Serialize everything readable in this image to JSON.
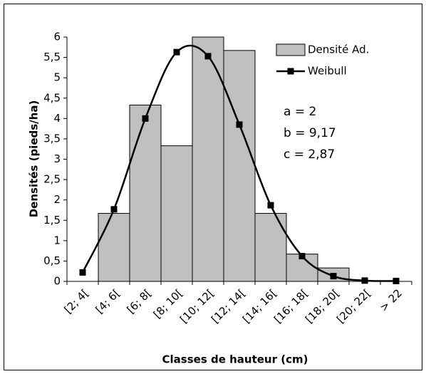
{
  "chart_data": {
    "type": "bar",
    "x_label": "Classes de hauteur (cm)",
    "y_label": "Densités (pieds/ha)",
    "categories": [
      "[2; 4[",
      "[4; 6[",
      "[6; 8[",
      "[8; 10[",
      "[10; 12[",
      "[12; 14[",
      "[14; 16[",
      "[16; 18[",
      "[18; 20[",
      "[20; 22[",
      "> 22"
    ],
    "series": [
      {
        "name": "Densité Ad.",
        "type": "bar",
        "color": "#c0c0c0",
        "values": [
          0,
          1.67,
          4.33,
          3.33,
          6,
          5.67,
          1.67,
          0.67,
          0.33,
          0,
          0
        ]
      },
      {
        "name": "Weibull",
        "type": "line",
        "color": "#000000",
        "values": [
          0.22,
          1.77,
          4.0,
          5.63,
          5.53,
          3.85,
          1.87,
          0.62,
          0.13,
          0.02,
          0.01
        ]
      }
    ],
    "annotations": [
      "a  = 2",
      "b = 9,17",
      "c = 2,87"
    ],
    "ylim": [
      0,
      6
    ],
    "yticks": [
      0,
      {
        "value": 0.5,
        "label": "0,5"
      },
      1,
      {
        "value": 1.5,
        "label": "1,5"
      },
      2,
      {
        "value": 2.5,
        "label": "2,5"
      },
      3,
      {
        "value": 3.5,
        "label": "3,5"
      },
      4,
      {
        "value": 4.5,
        "label": "4,5"
      },
      5,
      {
        "value": 5.5,
        "label": "5,5"
      },
      6
    ],
    "grid": false
  }
}
